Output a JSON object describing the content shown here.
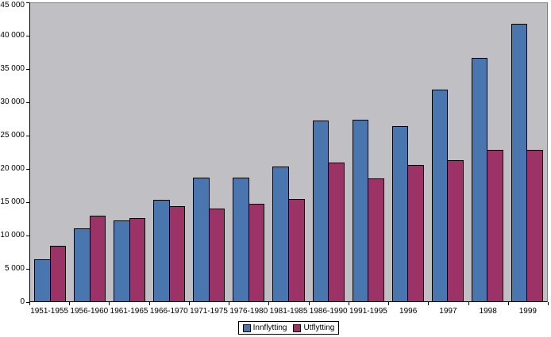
{
  "page": {
    "background": "#ffffff"
  },
  "chart_data": {
    "type": "bar",
    "title": "",
    "categories": [
      "1951-1955",
      "1956-1960",
      "1961-1965",
      "1966-1970",
      "1971-1975",
      "1976-1980",
      "1981-1985",
      "1986-1990",
      "1991-1995",
      "1996",
      "1997",
      "1998",
      "1999"
    ],
    "series": [
      {
        "name": "Innflytting",
        "color": "#4a76b0",
        "values": [
          6300,
          11000,
          12200,
          15300,
          18700,
          18700,
          20400,
          27300,
          27400,
          26500,
          32000,
          36800,
          41900
        ]
      },
      {
        "name": "Utflytting",
        "color": "#9c3366",
        "values": [
          8400,
          12900,
          12600,
          14400,
          14000,
          14700,
          15400,
          21000,
          18600,
          20600,
          21300,
          22900,
          22900
        ]
      }
    ],
    "xlabel": "",
    "ylabel": "",
    "ylim": [
      0,
      45000
    ],
    "ytick_step": 5000,
    "ytick_labels": [
      "0",
      "5 000",
      "10 000",
      "15 000",
      "20 000",
      "25 000",
      "30 000",
      "35 000",
      "40 000",
      "45 000"
    ],
    "grid": false,
    "legend_position": "bottom",
    "plot_background": "#c0c0c4",
    "bar_border_color": "#000000"
  }
}
